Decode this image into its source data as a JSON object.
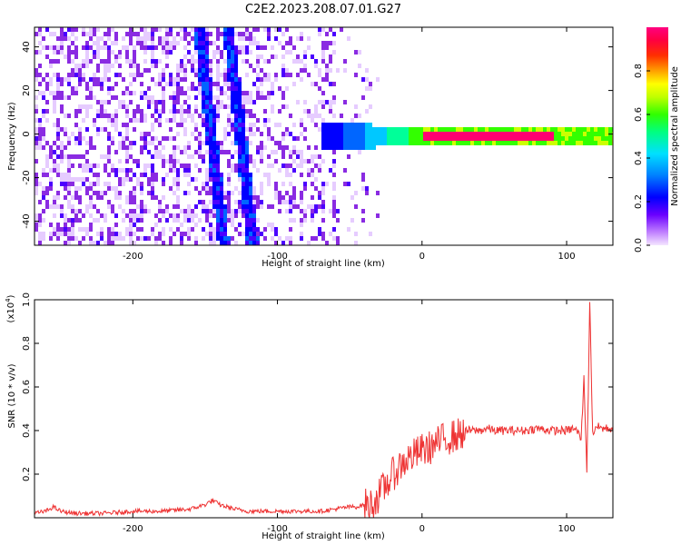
{
  "title": "C2E2.2023.208.07.01.G27",
  "chart_data": [
    {
      "type": "heatmap",
      "xlabel": "Height of straight line (km)",
      "ylabel": "Frequency (Hz)",
      "xlim": [
        -268,
        132
      ],
      "ylim": [
        -51,
        49
      ],
      "xticks": [
        -200,
        -100,
        0,
        100
      ],
      "yticks": [
        -40,
        -20,
        0,
        20,
        40
      ],
      "colorbar": {
        "label": "Normalized spectral amplitude",
        "range": [
          0,
          1
        ],
        "ticks": [
          "0.0",
          "0.2",
          "0.4",
          "0.6",
          "0.8"
        ],
        "colormap": [
          "#ffffff",
          "#e6ccff",
          "#8a2be2",
          "#4b00ff",
          "#0000ff",
          "#0066ff",
          "#00c8ff",
          "#00ff99",
          "#33ff00",
          "#ccff00",
          "#ffff00",
          "#ffb000",
          "#ff5000",
          "#ff0000",
          "#ff0070",
          "#ff0080"
        ]
      },
      "features": {
        "noise_region_x": [
          -268,
          -30
        ],
        "band_center_freq": 0,
        "band_x_start": -70,
        "strong_band_x": [
          0,
          132
        ],
        "dispersion_lines": [
          {
            "x_top": -155,
            "f_top": 49,
            "x_bottom": -138,
            "f_bottom": -51
          },
          {
            "x_top": -135,
            "f_top": 49,
            "x_bottom": -118,
            "f_bottom": -51
          }
        ],
        "artifact_x": 112
      }
    },
    {
      "type": "line",
      "xlabel": "Height of straight line (km)",
      "ylabel": "SNR (10 * v/v)",
      "multiplier_label": "(x10",
      "multiplier_exp": "4",
      "multiplier_close": ")",
      "xlim": [
        -268,
        132
      ],
      "ylim": [
        0,
        1.0
      ],
      "xticks": [
        -200,
        -100,
        0,
        100
      ],
      "yticks": [
        0.2,
        0.4,
        0.6,
        0.8,
        1.0
      ],
      "series": [
        {
          "color": "#ee3333",
          "x": [
            -268,
            -260,
            -255,
            -250,
            -240,
            -220,
            -200,
            -180,
            -160,
            -150,
            -145,
            -140,
            -130,
            -120,
            -100,
            -80,
            -70,
            -60,
            -50,
            -45,
            -40,
            -35,
            -30,
            -25,
            -20,
            -15,
            -10,
            -5,
            0,
            5,
            10,
            15,
            20,
            25,
            30,
            35,
            40,
            45,
            50,
            60,
            70,
            80,
            90,
            100,
            105,
            108,
            110,
            112,
            114,
            115,
            116,
            118,
            120,
            125,
            132
          ],
          "y": [
            0.02,
            0.03,
            0.05,
            0.03,
            0.02,
            0.02,
            0.03,
            0.03,
            0.04,
            0.06,
            0.08,
            0.06,
            0.04,
            0.03,
            0.03,
            0.03,
            0.03,
            0.04,
            0.05,
            0.05,
            0.06,
            0.06,
            0.1,
            0.15,
            0.2,
            0.24,
            0.27,
            0.29,
            0.31,
            0.32,
            0.34,
            0.36,
            0.37,
            0.38,
            0.4,
            0.4,
            0.4,
            0.41,
            0.4,
            0.4,
            0.4,
            0.41,
            0.4,
            0.4,
            0.41,
            0.39,
            0.36,
            0.64,
            0.22,
            0.58,
            1.0,
            0.38,
            0.42,
            0.41,
            0.41
          ]
        }
      ]
    }
  ]
}
